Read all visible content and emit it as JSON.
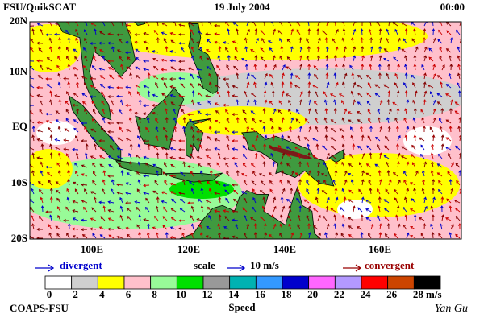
{
  "header": {
    "left": "FSU/QuikSCAT",
    "date": "19 July 2004",
    "time": "00:00"
  },
  "map": {
    "lat_labels": [
      "20N",
      "10N",
      "EQ",
      "10S",
      "20S"
    ],
    "lon_labels": [
      "100E",
      "120E",
      "140E",
      "160E"
    ]
  },
  "legend": {
    "divergent": "divergent",
    "scale": "scale",
    "scale_value": "10 m/s",
    "convergent": "convergent"
  },
  "colorbar": {
    "ticks": [
      0,
      2,
      4,
      6,
      8,
      10,
      12,
      14,
      16,
      18,
      20,
      22,
      24,
      26,
      28
    ],
    "colors": [
      "#ffffff",
      "#cfcfcf",
      "#ffff00",
      "#ffc0cb",
      "#98fb98",
      "#00e000",
      "#999999",
      "#00b2b2",
      "#3399ff",
      "#0000cc",
      "#ff66ff",
      "#b399ff",
      "#ff0000",
      "#cc4400",
      "#000000"
    ],
    "unit": "m/s",
    "title": "Speed"
  },
  "footer": {
    "left": "COAPS-FSU",
    "right": "Yan Gu"
  }
}
